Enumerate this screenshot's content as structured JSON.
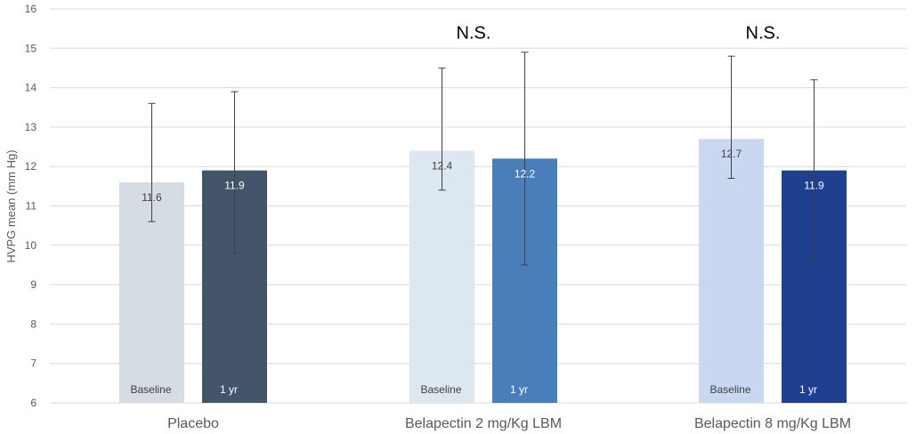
{
  "chart_data": {
    "type": "bar",
    "ylabel": "HVPG mean (mm Hg)",
    "xlabel": "",
    "ylim": [
      6,
      16
    ],
    "yticks": [
      6,
      7,
      8,
      9,
      10,
      11,
      12,
      13,
      14,
      15,
      16
    ],
    "grid": true,
    "categories": [
      "Placebo",
      "Belapectin 2 mg/Kg LBM",
      "Belapectin 8 mg/Kg LBM"
    ],
    "bars": [
      {
        "group": "Placebo",
        "phase": "Baseline",
        "value": 11.6,
        "label": "11.6",
        "err_low": 10.6,
        "err_high": 13.6,
        "color": "#d6dce4",
        "text_color": "#404040"
      },
      {
        "group": "Placebo",
        "phase": "1 yr",
        "value": 11.9,
        "label": "11.9",
        "err_low": 9.8,
        "err_high": 13.9,
        "color": "#44546a",
        "text_color": "#ffffff"
      },
      {
        "group": "Belapectin 2 mg/Kg LBM",
        "phase": "Baseline",
        "value": 12.4,
        "label": "12.4",
        "err_low": 11.4,
        "err_high": 14.5,
        "color": "#dde7f0",
        "text_color": "#404040"
      },
      {
        "group": "Belapectin 2 mg/Kg LBM",
        "phase": "1 yr",
        "value": 12.2,
        "label": "12.2",
        "err_low": 9.5,
        "err_high": 14.9,
        "color": "#4a7ebb",
        "text_color": "#ffffff"
      },
      {
        "group": "Belapectin 8 mg/Kg LBM",
        "phase": "Baseline",
        "value": 12.7,
        "label": "12.7",
        "err_low": 11.7,
        "err_high": 14.8,
        "color": "#c9d7f0",
        "text_color": "#404040"
      },
      {
        "group": "Belapectin 8 mg/Kg LBM",
        "phase": "1 yr",
        "value": 11.9,
        "label": "11.9",
        "err_low": 9.6,
        "err_high": 14.2,
        "color": "#1f3f8f",
        "text_color": "#ffffff"
      }
    ],
    "annotations": [
      {
        "group": "Belapectin 2 mg/Kg LBM",
        "text": "N.S.",
        "y": 15.4
      },
      {
        "group": "Belapectin 8 mg/Kg LBM",
        "text": "N.S.",
        "y": 15.4
      }
    ]
  }
}
